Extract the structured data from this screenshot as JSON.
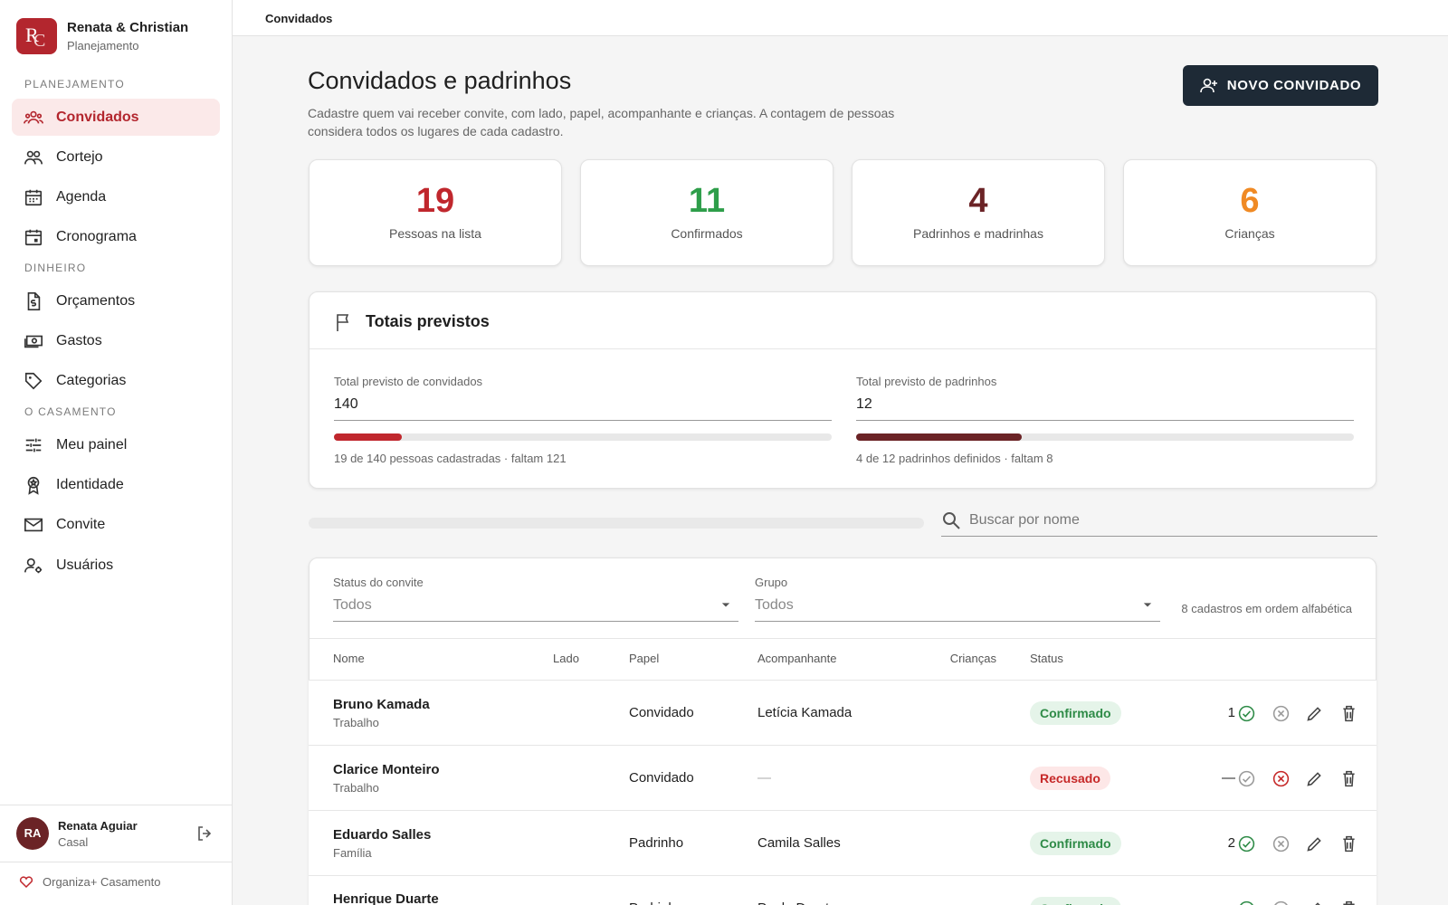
{
  "sidebar": {
    "logo": [
      "R",
      "C"
    ],
    "brand": "Renata & Christian",
    "brand_sub": "Planejamento",
    "sections": [
      {
        "title": "PLANEJAMENTO",
        "items": [
          {
            "label": "Convidados",
            "icon": "people",
            "active": true
          },
          {
            "label": "Cortejo",
            "icon": "group"
          },
          {
            "label": "Agenda",
            "icon": "calendar"
          },
          {
            "label": "Cronograma",
            "icon": "event"
          }
        ]
      },
      {
        "title": "DINHEIRO",
        "items": [
          {
            "label": "Orçamentos",
            "icon": "doc"
          },
          {
            "label": "Gastos",
            "icon": "cash"
          },
          {
            "label": "Categorias",
            "icon": "tag"
          }
        ]
      },
      {
        "title": "O CASAMENTO",
        "items": [
          {
            "label": "Meu painel",
            "icon": "tune"
          },
          {
            "label": "Identidade",
            "icon": "badge"
          },
          {
            "label": "Convite",
            "icon": "mail"
          },
          {
            "label": "Usuários",
            "icon": "user"
          }
        ]
      }
    ],
    "user": {
      "initials": "RA",
      "name": "Renata Aguiar",
      "role": "Casal"
    },
    "footer": "Organiza+ Casamento"
  },
  "topbar": {
    "title": "Convidados"
  },
  "header": {
    "title": "Convidados e padrinhos",
    "description": "Cadastre quem vai receber convite, com lado, papel, acompanhante e crianças. A contagem de pessoas considera todos os lugares de cada cadastro.",
    "button": "NOVO CONVIDADO"
  },
  "stats": [
    {
      "value": 19,
      "label": "Pessoas na lista",
      "color": "#c0272d"
    },
    {
      "value": 11,
      "label": "Confirmados",
      "color": "#2e9e4a"
    },
    {
      "value": 4,
      "label": "Padrinhos e madrinhas",
      "color": "#6b2326"
    },
    {
      "value": 6,
      "label": "Crianças",
      "color": "#f08a24"
    }
  ],
  "totals": {
    "title": "Totais previstos",
    "fields": [
      {
        "label": "Total previsto de convidados",
        "value": 140,
        "caption": "19 de 140 pessoas cadastradas · faltam 121",
        "color": "#c0272d"
      },
      {
        "label": "Total previsto de padrinhos",
        "value": 12,
        "caption": "4 de 12 padrinhos definidos · faltam 8",
        "color": "#6b2326"
      }
    ]
  },
  "search": {
    "placeholder": "Buscar por nome"
  },
  "filters": {
    "fields": [
      {
        "label": "Status do convite",
        "value": "Todos"
      },
      {
        "label": "Grupo",
        "value": "Todos"
      }
    ],
    "count": "8 cadastros em ordem alfabética"
  },
  "table": {
    "columns": [
      "Nome",
      "Lado",
      "Papel",
      "Acompanhante",
      "Crianças",
      "Status"
    ],
    "rows": [
      {
        "name": "Bruno Kamada",
        "group": "Trabalho",
        "role": "Convidado",
        "companion": "Letícia Kamada",
        "children": 1,
        "status": {
          "label": "Confirmado",
          "color": "#2e8b47",
          "bg": "#e5f4e9",
          "icon": "check"
        }
      },
      {
        "name": "Clarice Monteiro",
        "group": "Trabalho",
        "role": "Convidado",
        "companion": "—",
        "children": "—",
        "status": {
          "label": "Recusado",
          "color": "#c62828",
          "bg": "#fde7e7",
          "icon": "cancel"
        }
      },
      {
        "name": "Eduardo Salles",
        "group": "Família",
        "role": "Padrinho",
        "companion": "Camila Salles",
        "children": 2,
        "status": {
          "label": "Confirmado",
          "color": "#2e8b47",
          "bg": "#e5f4e9",
          "icon": "check"
        }
      },
      {
        "name": "Henrique Duarte",
        "role": "Padrinho",
        "companion": "Paula Duarte",
        "status": {
          "label": "Confirmado",
          "color": "#2e8b47",
          "bg": "#e5f4e9",
          "icon": "check"
        }
      }
    ]
  }
}
